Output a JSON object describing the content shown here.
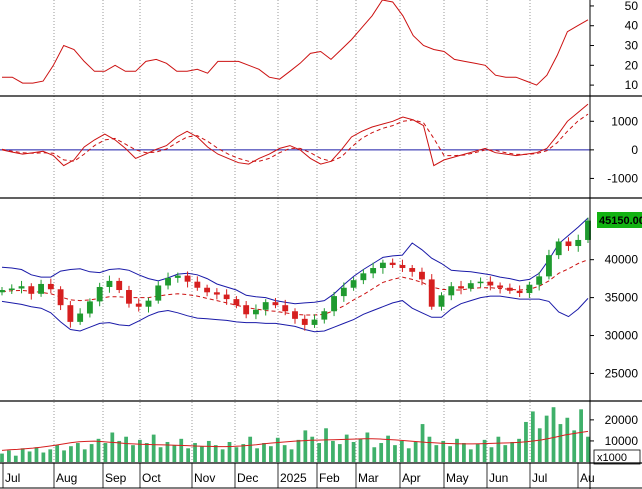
{
  "chart_data": {
    "type": "stock-chart-multi-panel",
    "colors": {
      "up": "#1f9a2f",
      "down": "#d61f1f",
      "bands": "#1a1aa8",
      "line": "#cc1111",
      "zero_line": "#1a1aa8",
      "volume": "#3fb06a",
      "price_label_bg": "#12b212",
      "grid": "#9a9a9a"
    },
    "x_axis": {
      "months": [
        "Jul",
        "Aug",
        "Sep",
        "Oct",
        "Nov",
        "Dec",
        "2025",
        "Feb",
        "Mar",
        "Apr",
        "May",
        "Jun",
        "Jul",
        "Au"
      ],
      "unit_label": "x1000"
    },
    "panels": [
      {
        "name": "oscillator",
        "type": "line",
        "y_ticks": [
          "50",
          "40",
          "30",
          "20",
          "10"
        ],
        "y_range": [
          5,
          53
        ],
        "values": [
          14,
          14,
          11,
          11,
          12,
          20,
          30,
          28,
          22,
          17,
          17,
          20,
          17,
          17,
          22,
          23,
          21,
          17,
          17,
          18,
          16,
          22,
          22,
          22,
          20,
          18,
          14,
          13,
          17,
          21,
          26,
          27,
          23,
          28,
          33,
          39,
          45,
          53,
          52,
          45,
          35,
          30,
          28,
          27,
          23,
          22,
          21,
          20,
          15,
          14,
          14,
          12,
          10,
          15,
          25,
          37,
          40,
          43
        ]
      },
      {
        "name": "macd",
        "type": "line",
        "y_ticks": [
          "1000",
          "0",
          "-1000"
        ],
        "y_range": [
          -1650,
          1850
        ],
        "zero_line": 0,
        "series": [
          {
            "values": [
              0,
              -80,
              -150,
              -100,
              -50,
              -200,
              -550,
              -350,
              100,
              350,
              550,
              350,
              50,
              -300,
              -150,
              20,
              150,
              450,
              650,
              450,
              100,
              -150,
              -300,
              -450,
              -500,
              -300,
              -150,
              50,
              150,
              0,
              -300,
              -500,
              -400,
              0,
              450,
              650,
              800,
              900,
              1000,
              1150,
              1050,
              850,
              -550,
              -350,
              -250,
              -150,
              -50,
              50,
              -100,
              -150,
              -200,
              -150,
              -100,
              50,
              500,
              1000,
              1300,
              1600
            ]
          },
          {
            "values": [
              20,
              -50,
              -100,
              -120,
              -100,
              -120,
              -350,
              -400,
              -150,
              150,
              350,
              400,
              200,
              0,
              -100,
              -80,
              30,
              250,
              450,
              500,
              300,
              50,
              -150,
              -300,
              -400,
              -400,
              -300,
              -100,
              50,
              50,
              -100,
              -300,
              -400,
              -250,
              100,
              400,
              600,
              750,
              850,
              1000,
              1050,
              950,
              400,
              -200,
              -200,
              -180,
              -100,
              0,
              -20,
              -100,
              -160,
              -160,
              -130,
              -30,
              250,
              650,
              1000,
              1250
            ]
          }
        ]
      },
      {
        "name": "price",
        "type": "candlestick",
        "y_ticks": [
          "40000",
          "35000",
          "30000",
          "25000"
        ],
        "y_range": [
          21500,
          48000
        ],
        "last_price_label": "45150.00",
        "close": [
          36000,
          36200,
          36500,
          35500,
          36800,
          36100,
          34000,
          31800,
          32900,
          34500,
          36400,
          37200,
          36000,
          34200,
          33800,
          34600,
          36600,
          37600,
          37900,
          37100,
          36300,
          35700,
          35400,
          34800,
          34000,
          32800,
          33400,
          34400,
          34000,
          33200,
          32200,
          31400,
          32100,
          33200,
          35200,
          36300,
          37300,
          38200,
          38900,
          39600,
          39300,
          38900,
          38400,
          37400,
          33800,
          35300,
          36500,
          36200,
          36900,
          37100,
          36600,
          36300,
          35900,
          35600,
          36700,
          37800,
          40600,
          42400,
          41800,
          42600,
          45150
        ],
        "ma": [
          35800,
          35900,
          35950,
          35850,
          35700,
          35500,
          35100,
          34700,
          34600,
          34700,
          34900,
          35100,
          35100,
          35000,
          35000,
          35000,
          35200,
          35400,
          35500,
          35400,
          35200,
          34900,
          34600,
          34300,
          34000,
          33700,
          33500,
          33300,
          33200,
          33000,
          32800,
          32700,
          32700,
          32800,
          33300,
          33900,
          34700,
          35400,
          36200,
          37000,
          37400,
          37700,
          37400,
          37000,
          36400,
          36100,
          36000,
          36000,
          36200,
          36300,
          36300,
          36200,
          36100,
          36000,
          36100,
          36500,
          37200,
          38200,
          38800,
          39500,
          40000
        ],
        "upper_band": [
          39000,
          38900,
          38700,
          38000,
          37700,
          37700,
          38500,
          38700,
          38800,
          38400,
          38300,
          38700,
          38800,
          38600,
          38000,
          37500,
          37200,
          37600,
          38100,
          38200,
          38000,
          37500,
          36800,
          36400,
          36000,
          35300,
          35100,
          35000,
          34600,
          34400,
          34200,
          34300,
          34400,
          34600,
          35500,
          36700,
          37800,
          38700,
          39500,
          40300,
          40500,
          40600,
          42200,
          41300,
          40200,
          39500,
          38600,
          38500,
          38400,
          38200,
          38000,
          37700,
          37500,
          37200,
          37400,
          38200,
          40000,
          42100,
          43200,
          44300,
          45500
        ],
        "lower_band": [
          34500,
          34300,
          34100,
          33800,
          33600,
          33000,
          31800,
          30800,
          30600,
          31100,
          31600,
          31700,
          31400,
          31300,
          31900,
          32600,
          33100,
          33300,
          33000,
          32600,
          32300,
          32200,
          32100,
          32000,
          31800,
          31700,
          31700,
          31600,
          31600,
          31400,
          31200,
          30800,
          30500,
          30600,
          31100,
          31600,
          32100,
          32800,
          33300,
          33800,
          34300,
          34600,
          33600,
          33000,
          32400,
          32400,
          33500,
          34200,
          34600,
          35000,
          35200,
          35200,
          35000,
          34800,
          34800,
          34800,
          34500,
          33100,
          32500,
          33500,
          34900
        ]
      },
      {
        "name": "volume",
        "type": "bar",
        "y_ticks": [
          "20000",
          "10000"
        ],
        "y_range": [
          0,
          28000
        ],
        "values": [
          4000,
          5500,
          3000,
          6500,
          5000,
          7000,
          4500,
          6000,
          8000,
          5500,
          7500,
          9000,
          6000,
          8500,
          11000,
          9000,
          14000,
          10000,
          12000,
          8000,
          10500,
          9000,
          13000,
          7000,
          9500,
          8000,
          11000,
          6500,
          9000,
          7500,
          10000,
          8000,
          6000,
          9500,
          7000,
          8500,
          12000,
          6500,
          9000,
          7500,
          11500,
          8000,
          6000,
          10500,
          15000,
          12000,
          9000,
          16000,
          10000,
          8500,
          13000,
          9500,
          11000,
          14000,
          7000,
          9000,
          12500,
          8000,
          10000,
          6500,
          9500,
          18000,
          12000,
          8000,
          10000,
          7500,
          11000,
          9000,
          6000,
          8500,
          10500,
          7000,
          12000,
          8000,
          9500,
          11000,
          19000,
          24000,
          16000,
          22000,
          26000,
          18000,
          21000,
          15000,
          25000,
          12000
        ],
        "ma": [
          5500,
          5800,
          6000,
          6300,
          6600,
          7000,
          7500,
          8000,
          8600,
          9200,
          9600,
          9800,
          9900,
          9700,
          9400,
          9100,
          8800,
          8600,
          8400,
          8300,
          8200,
          8100,
          8000,
          7900,
          7800,
          7600,
          7500,
          7400,
          7300,
          7300,
          7400,
          7600,
          7900,
          8200,
          8700,
          9000,
          9300,
          9600,
          9900,
          10100,
          10300,
          10400,
          10500,
          10600,
          10700,
          10800,
          10900,
          11000,
          11000,
          10900,
          10700,
          10500,
          10200,
          9900,
          9600,
          9300,
          9100,
          8900,
          8800,
          8700,
          8600,
          8600,
          8700,
          8800,
          8900,
          9000,
          9100,
          9300,
          9600,
          10000,
          10500,
          11200,
          12000,
          12800,
          13400,
          14000,
          14500
        ]
      }
    ]
  }
}
